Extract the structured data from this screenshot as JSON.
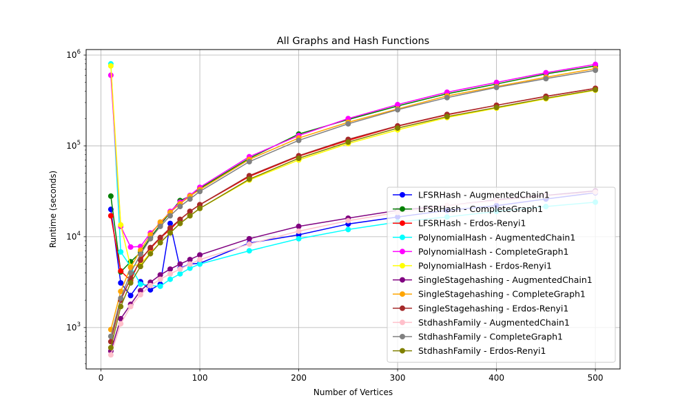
{
  "chart_data": {
    "type": "line",
    "title": "All Graphs and Hash Functions",
    "xlabel": "Number of Vertices",
    "ylabel": "Runtime (seconds)",
    "y_scale": "log",
    "xlim": [
      -15,
      525
    ],
    "ylim": [
      350,
      1150000
    ],
    "x_ticks": [
      0,
      100,
      200,
      300,
      400,
      500
    ],
    "y_ticks": [
      {
        "value": 1000,
        "base": "10",
        "exp": "3"
      },
      {
        "value": 10000,
        "base": "10",
        "exp": "4"
      },
      {
        "value": 100000,
        "base": "10",
        "exp": "5"
      },
      {
        "value": 1000000,
        "base": "10",
        "exp": "6"
      }
    ],
    "grid": true,
    "legend_position": "lower right",
    "x": [
      10,
      20,
      30,
      40,
      50,
      60,
      70,
      80,
      90,
      100,
      150,
      200,
      250,
      300,
      350,
      400,
      450,
      500
    ],
    "series": [
      {
        "name": "LFSRHash - AugmentedChain1",
        "color": "#0000ff",
        "values": [
          20000,
          3100,
          2250,
          3200,
          2600,
          3000,
          14000,
          4500,
          5000,
          5100,
          8500,
          10500,
          13800,
          16500,
          19500,
          22000,
          26000,
          30500
        ]
      },
      {
        "name": "LFSRHash - CompleteGraph1",
        "color": "#008000",
        "values": [
          28000,
          4100,
          5300,
          6700,
          9800,
          13500,
          18500,
          25000,
          28000,
          34000,
          73000,
          135000,
          195000,
          275000,
          375000,
          480000,
          620000,
          760000
        ]
      },
      {
        "name": "LFSRHash - Erdos-Renyi1",
        "color": "#ff0000",
        "values": [
          17000,
          4200,
          3300,
          5700,
          7400,
          9700,
          12000,
          15500,
          19000,
          22500,
          46000,
          77000,
          115000,
          165000,
          220000,
          280000,
          350000,
          430000
        ]
      },
      {
        "name": "PolynomialHash - AugmentedChain1",
        "color": "#00ffff",
        "values": [
          800000,
          6800,
          4700,
          3000,
          2900,
          2850,
          3400,
          3900,
          4500,
          5000,
          7000,
          9500,
          12000,
          14500,
          16500,
          19000,
          21500,
          24000
        ]
      },
      {
        "name": "PolynomialHash - CompleteGraph1",
        "color": "#ff00ff",
        "values": [
          600000,
          13000,
          7700,
          7800,
          11000,
          14000,
          19000,
          24000,
          28500,
          35000,
          76000,
          130000,
          200000,
          285000,
          390000,
          500000,
          640000,
          790000
        ]
      },
      {
        "name": "PolynomialHash - Erdos-Renyi1",
        "color": "#ffff00",
        "values": [
          760000,
          13500,
          4700,
          5000,
          6600,
          8600,
          11000,
          14000,
          17000,
          20500,
          42000,
          70000,
          106000,
          150000,
          205000,
          260000,
          330000,
          410000
        ]
      },
      {
        "name": "SingleStagehashing - AugmentedChain1",
        "color": "#800080",
        "values": [
          550,
          1250,
          1800,
          2550,
          3150,
          3800,
          4400,
          5000,
          5600,
          6300,
          9500,
          13000,
          16000,
          19500,
          22000,
          25500,
          28500,
          32000
        ]
      },
      {
        "name": "SingleStagehashing - CompleteGraph1",
        "color": "#ffa500",
        "values": [
          950,
          2500,
          4600,
          7100,
          10500,
          14500,
          18500,
          23000,
          28000,
          33000,
          71000,
          122000,
          182000,
          255000,
          355000,
          450000,
          570000,
          710000
        ]
      },
      {
        "name": "SingleStagehashing - Erdos-Renyi1",
        "color": "#a52a2a",
        "values": [
          700,
          2000,
          3500,
          5500,
          7600,
          9800,
          12500,
          15500,
          19000,
          22500,
          47000,
          78000,
          118000,
          166000,
          222000,
          280000,
          352000,
          430000
        ]
      },
      {
        "name": "StdhashFamily - AugmentedChain1",
        "color": "#ffc0cb",
        "values": [
          500,
          1100,
          1700,
          2300,
          2900,
          3400,
          3900,
          4400,
          5000,
          5600,
          8300,
          11500,
          15000,
          18500,
          22000,
          25000,
          28000,
          31000
        ]
      },
      {
        "name": "StdhashFamily - CompleteGraph1",
        "color": "#808080",
        "values": [
          800,
          2100,
          4000,
          6400,
          9500,
          13000,
          17000,
          21500,
          26000,
          31500,
          67000,
          115000,
          175000,
          250000,
          340000,
          440000,
          550000,
          680000
        ]
      },
      {
        "name": "StdhashFamily - Erdos-Renyi1",
        "color": "#808000",
        "values": [
          600,
          1700,
          3100,
          4700,
          6500,
          8600,
          11000,
          14000,
          17000,
          20500,
          43000,
          73000,
          110000,
          157000,
          210000,
          265000,
          335000,
          415000
        ]
      }
    ]
  }
}
